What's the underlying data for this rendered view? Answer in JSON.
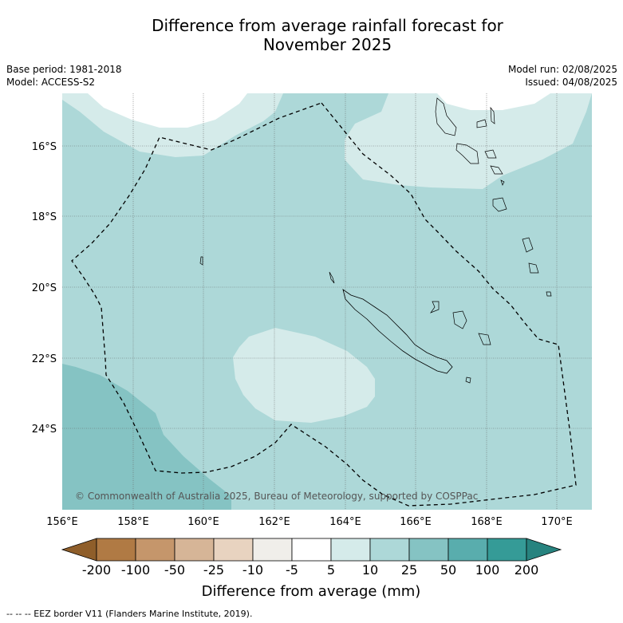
{
  "title_line1": "Difference from average rainfall forecast for",
  "title_line2": "November 2025",
  "base_period": "Base period: 1981-2018",
  "model": "Model: ACCESS-S2",
  "model_run": "Model run: 02/08/2025",
  "issued": "Issued: 04/08/2025",
  "copyright": "© Commonwealth of Australia 2025, Bureau of Meteorology, supported by COSPPac",
  "lat_labels": [
    "16°S",
    "18°S",
    "20°S",
    "22°S",
    "24°S"
  ],
  "lon_labels": [
    "156°E",
    "158°E",
    "160°E",
    "162°E",
    "164°E",
    "166°E",
    "168°E",
    "170°E"
  ],
  "colorbar": {
    "ticks": [
      "-200",
      "-100",
      "-50",
      "-25",
      "-10",
      "-5",
      "5",
      "10",
      "25",
      "50",
      "100",
      "200"
    ],
    "colors": [
      "#8f5e2a",
      "#b07a44",
      "#c5966b",
      "#d6b597",
      "#e8d3c0",
      "#f0eeea",
      "#ffffff",
      "#d5ebea",
      "#add8d8",
      "#85c3c3",
      "#59adad",
      "#359b97",
      "#27837f"
    ],
    "title": "Difference from average (mm)"
  },
  "footer": "--  --  -- EEZ border V11 (Flanders Marine Institute, 2019)."
}
